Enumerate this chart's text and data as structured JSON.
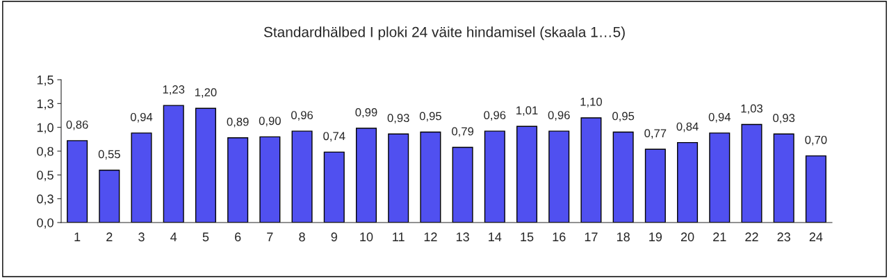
{
  "chart_data": {
    "type": "bar",
    "title": "Standardhälbed I ploki 24 väite hindamisel (skaala 1…5)",
    "categories": [
      "1",
      "2",
      "3",
      "4",
      "5",
      "6",
      "7",
      "8",
      "9",
      "10",
      "11",
      "12",
      "13",
      "14",
      "15",
      "16",
      "17",
      "18",
      "19",
      "20",
      "21",
      "22",
      "23",
      "24"
    ],
    "values": [
      0.86,
      0.55,
      0.94,
      1.23,
      1.2,
      0.89,
      0.9,
      0.96,
      0.74,
      0.99,
      0.93,
      0.95,
      0.79,
      0.96,
      1.01,
      0.96,
      1.1,
      0.95,
      0.77,
      0.84,
      0.94,
      1.03,
      0.93,
      0.7
    ],
    "value_labels": [
      "0,86",
      "0,55",
      "0,94",
      "1,23",
      "1,20",
      "0,89",
      "0,90",
      "0,96",
      "0,74",
      "0,99",
      "0,93",
      "0,95",
      "0,79",
      "0,96",
      "1,01",
      "0,96",
      "1,10",
      "0,95",
      "0,77",
      "0,84",
      "0,94",
      "1,03",
      "0,93",
      "0,70"
    ],
    "color": "#5050f0",
    "ylim": [
      0,
      1.5
    ],
    "yticks": [
      {
        "value": 0,
        "label": "0,0"
      },
      {
        "value": 0.25,
        "label": "0,3"
      },
      {
        "value": 0.5,
        "label": "0,5"
      },
      {
        "value": 0.75,
        "label": "0,8"
      },
      {
        "value": 1.0,
        "label": "1,0"
      },
      {
        "value": 1.25,
        "label": "1,3"
      },
      {
        "value": 1.5,
        "label": "1,5"
      }
    ],
    "grid": false
  }
}
